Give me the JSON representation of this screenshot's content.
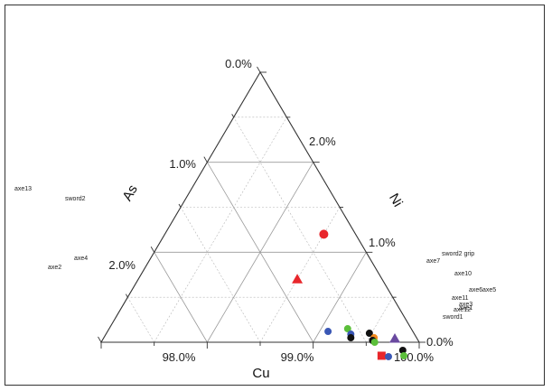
{
  "chart_data": {
    "type": "scatter",
    "subtype": "ternary",
    "axes": {
      "cu": {
        "label": "Cu",
        "ticks": [
          "98.0%",
          "99.0%",
          "100.0%"
        ]
      },
      "ni": {
        "label": "Ni",
        "ticks": [
          "0.0%",
          "1.0%",
          "2.0%"
        ]
      },
      "as": {
        "label": "As",
        "ticks": [
          "2.0%",
          "1.0%",
          "0.0%"
        ]
      }
    },
    "ranges": {
      "cu": [
        97,
        100
      ],
      "ni": [
        0,
        3
      ],
      "as": [
        0,
        3
      ]
    },
    "grid": true,
    "colors": {
      "red": "#e8262b",
      "blue": "#3a57b5",
      "green": "#5bbf3a",
      "black": "#111111",
      "orange": "#f28a1e",
      "purple": "#6a4aa0"
    },
    "points": [
      {
        "marker": "circle",
        "color": "red",
        "ni": 0.3,
        "as": 1.2
      },
      {
        "marker": "triangle",
        "color": "red",
        "ni": 0.8,
        "as": 0.7
      },
      {
        "marker": "circle",
        "color": "blue",
        "ni": 0.8,
        "as": 0.12
      },
      {
        "marker": "circle",
        "color": "green",
        "ni": 0.6,
        "as": 0.15
      },
      {
        "marker": "circle",
        "color": "blue",
        "ni": 0.6,
        "as": 0.09
      },
      {
        "marker": "circle",
        "color": "black",
        "ni": 0.62,
        "as": 0.05
      },
      {
        "marker": "circle",
        "color": "black",
        "ni": 0.42,
        "as": 0.1
      },
      {
        "marker": "circle",
        "color": "orange",
        "ni": 0.4,
        "as": 0.05
      },
      {
        "marker": "circle",
        "color": "black",
        "ni": 0.43,
        "as": 0.02
      },
      {
        "marker": "circle",
        "color": "green",
        "ni": 0.42,
        "as": 0.0
      },
      {
        "marker": "square",
        "color": "red",
        "ni": 0.43,
        "as": -0.15
      },
      {
        "marker": "circle",
        "color": "blue",
        "ni": 0.37,
        "as": -0.16
      },
      {
        "marker": "triangle",
        "color": "purple",
        "ni": 0.21,
        "as": 0.04
      },
      {
        "marker": "circle",
        "color": "black",
        "ni": 0.2,
        "as": -0.09
      },
      {
        "marker": "circle",
        "color": "green",
        "ni": 0.22,
        "as": -0.15
      }
    ],
    "sample_labels": [
      {
        "text": "axe13"
      },
      {
        "text": "sword2"
      },
      {
        "text": "axe4"
      },
      {
        "text": "axe2"
      },
      {
        "text": "sword2 grip"
      },
      {
        "text": "axe7"
      },
      {
        "text": "axe10"
      },
      {
        "text": "axe6"
      },
      {
        "text": "axe5"
      },
      {
        "text": "axe11"
      },
      {
        "text": "axe3"
      },
      {
        "text": "axe1"
      },
      {
        "text": "axe12"
      },
      {
        "text": "sword1"
      }
    ]
  }
}
